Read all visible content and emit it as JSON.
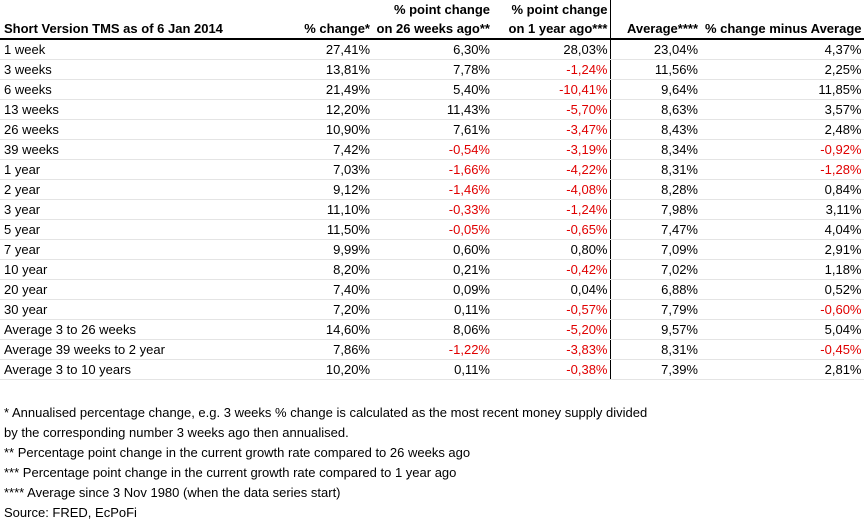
{
  "table": {
    "title": "Short Version TMS as of 6 Jan 2014",
    "columns": [
      [
        "% change*"
      ],
      [
        "% point change",
        "on 26 weeks ago**"
      ],
      [
        "% point change",
        "on 1 year ago***"
      ],
      [
        "Average****"
      ],
      [
        "% change minus Average"
      ]
    ],
    "rows": [
      [
        "1 week",
        "27,41%",
        "6,30%",
        "28,03%",
        "23,04%",
        "4,37%"
      ],
      [
        "3 weeks",
        "13,81%",
        "7,78%",
        "-1,24%",
        "11,56%",
        "2,25%"
      ],
      [
        "6 weeks",
        "21,49%",
        "5,40%",
        "-10,41%",
        "9,64%",
        "11,85%"
      ],
      [
        "13 weeks",
        "12,20%",
        "11,43%",
        "-5,70%",
        "8,63%",
        "3,57%"
      ],
      [
        "26 weeks",
        "10,90%",
        "7,61%",
        "-3,47%",
        "8,43%",
        "2,48%"
      ],
      [
        "39 weeks",
        "7,42%",
        "-0,54%",
        "-3,19%",
        "8,34%",
        "-0,92%"
      ],
      [
        "1 year",
        "7,03%",
        "-1,66%",
        "-4,22%",
        "8,31%",
        "-1,28%"
      ],
      [
        "2 year",
        "9,12%",
        "-1,46%",
        "-4,08%",
        "8,28%",
        "0,84%"
      ],
      [
        "3 year",
        "11,10%",
        "-0,33%",
        "-1,24%",
        "7,98%",
        "3,11%"
      ],
      [
        "5 year",
        "11,50%",
        "-0,05%",
        "-0,65%",
        "7,47%",
        "4,04%"
      ],
      [
        "7 year",
        "9,99%",
        "0,60%",
        "0,80%",
        "7,09%",
        "2,91%"
      ],
      [
        "10 year",
        "8,20%",
        "0,21%",
        "-0,42%",
        "7,02%",
        "1,18%"
      ],
      [
        "20 year",
        "7,40%",
        "0,09%",
        "0,04%",
        "6,88%",
        "0,52%"
      ],
      [
        "30 year",
        "7,20%",
        "0,11%",
        "-0,57%",
        "7,79%",
        "-0,60%"
      ]
    ],
    "summary_rows": [
      [
        "Average 3 to 26 weeks",
        "14,60%",
        "8,06%",
        "-5,20%",
        "9,57%",
        "5,04%"
      ],
      [
        "Average 39 weeks to 2 year",
        "7,86%",
        "-1,22%",
        "-3,83%",
        "8,31%",
        "-0,45%"
      ],
      [
        "Average 3 to 10 years",
        "10,20%",
        "0,11%",
        "-0,38%",
        "7,39%",
        "2,81%"
      ]
    ]
  },
  "footnotes": [
    "* Annualised percentage change, e.g. 3 weeks % change is calculated as the most recent money supply divided",
    "by the corresponding number 3 weeks ago then annualised.",
    "** Percentage point change in the current growth rate compared to 26 weeks ago",
    "***  Percentage point change in the current growth rate compared to 1 year ago",
    "**** Average since 3 Nov 1980 (when the data series start)",
    "Source: FRED, EcPoFi"
  ]
}
